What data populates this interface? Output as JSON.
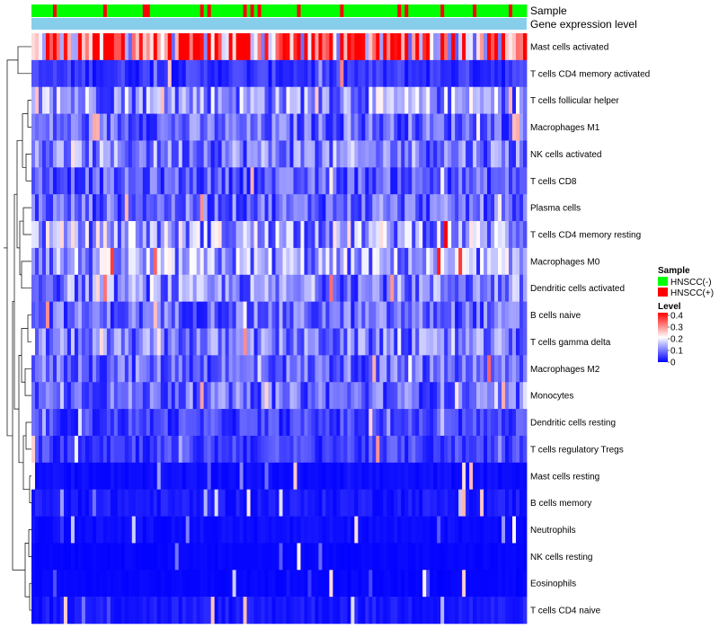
{
  "chart_data": {
    "type": "heatmap",
    "title": "",
    "annotation_tracks": [
      "Sample",
      "Gene expression level"
    ],
    "rows": [
      "Mast cells activated",
      "T cells CD4 memory activated",
      "T cells follicular helper",
      "Macrophages M1",
      "NK cells activated",
      "T cells CD8",
      "Plasma cells",
      "T cells CD4 memory resting",
      "Macrophages M0",
      "Dendritic cells activated",
      "B cells naive",
      "T cells gamma delta",
      "Macrophages M2",
      "Monocytes",
      "Dendritic cells resting",
      "T cells regulatory  Tregs",
      "Mast cells resting",
      "B cells memory",
      "Neutrophils",
      "NK cells resting",
      "Eosinophils",
      "T cells CD4 naive"
    ],
    "row_mean_levels": [
      0.32,
      0.04,
      0.12,
      0.08,
      0.1,
      0.07,
      0.08,
      0.13,
      0.12,
      0.1,
      0.08,
      0.09,
      0.08,
      0.08,
      0.05,
      0.05,
      0.01,
      0.02,
      0.01,
      0.005,
      0.005,
      0.02
    ],
    "n_samples": 138,
    "samples_hnscc_pos_fraction": 0.18,
    "legend": {
      "sample_title": "Sample",
      "sample_entries": [
        {
          "label": "HNSCC(-)",
          "color": "#00ff00"
        },
        {
          "label": "HNSCC(+)",
          "color": "#ff0000"
        }
      ],
      "level_title": "Level",
      "level_ticks": [
        "0.4",
        "0.3",
        "0.2",
        "0.1",
        "0"
      ],
      "level_range": [
        0,
        0.4
      ]
    },
    "colors": {
      "low": "#0000ff",
      "mid": "#ffffff",
      "high": "#ff0000",
      "gene_level_bar": "#87ceeb"
    }
  }
}
